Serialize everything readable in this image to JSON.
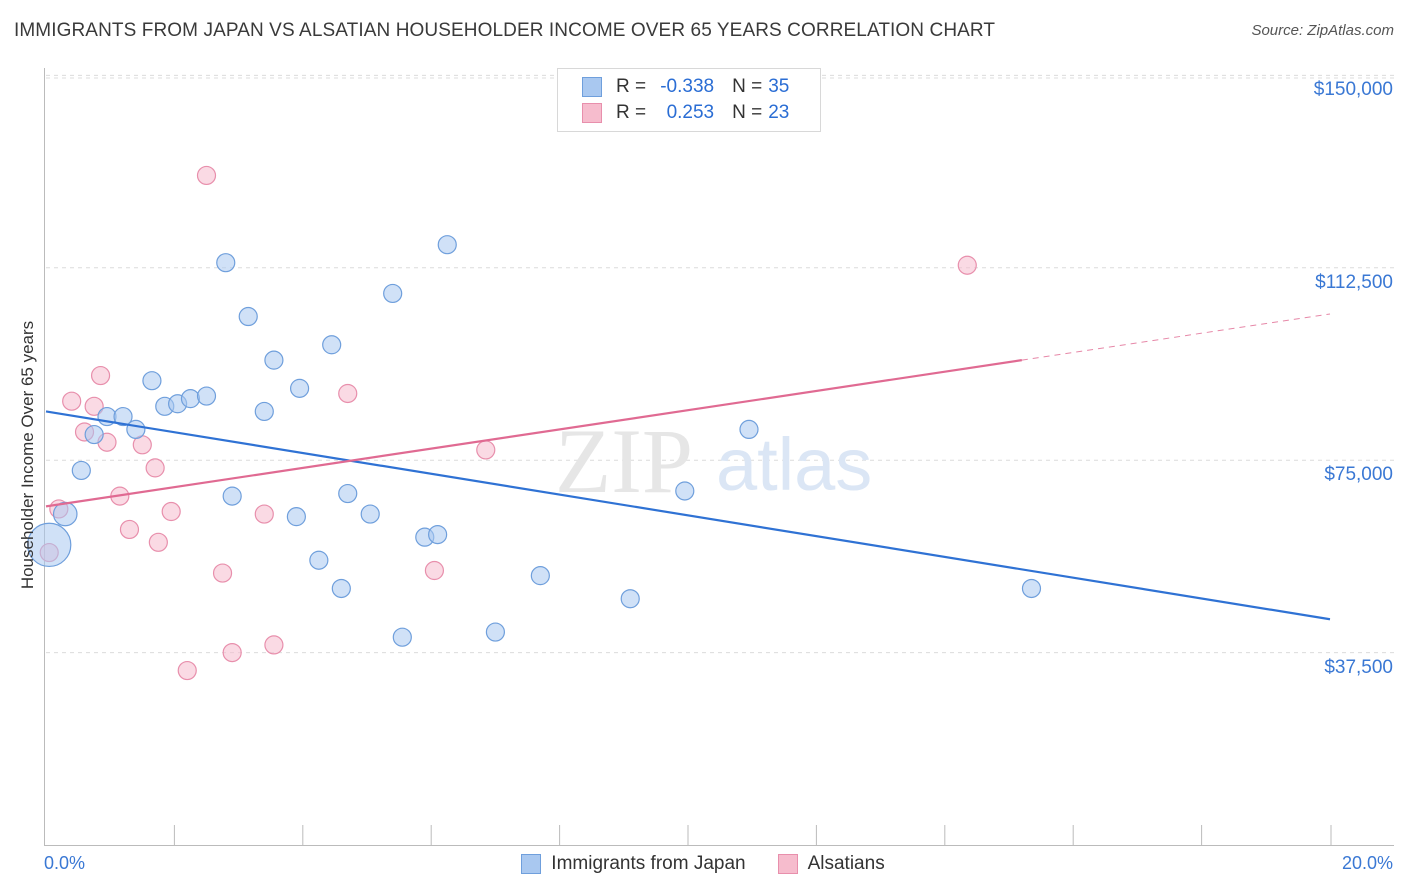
{
  "header": {
    "title": "IMMIGRANTS FROM JAPAN VS ALSATIAN HOUSEHOLDER INCOME OVER 65 YEARS CORRELATION CHART",
    "source": "Source: ZipAtlas.com"
  },
  "legend": {
    "r_label": "R =",
    "n_label": "N =",
    "rows": [
      {
        "r": "-0.338",
        "n": "35"
      },
      {
        "r": "0.253",
        "n": "23"
      }
    ]
  },
  "watermark": {
    "zip": "ZIP",
    "atlas": "atlas"
  },
  "chart_data": {
    "type": "scatter",
    "title": "IMMIGRANTS FROM JAPAN VS ALSATIAN HOUSEHOLDER INCOME OVER 65 YEARS CORRELATION CHART",
    "xlabel": "",
    "ylabel": "Householder Income Over 65 years",
    "xlim": [
      0,
      20
    ],
    "ylim": [
      0,
      153000
    ],
    "x_tick_labels": {
      "min": "0.0%",
      "max": "20.0%"
    },
    "y_ticks": [
      {
        "value": 37500,
        "label": "$37,500"
      },
      {
        "value": 75000,
        "label": "$75,000"
      },
      {
        "value": 112500,
        "label": "$112,500"
      },
      {
        "value": 150000,
        "label": "$150,000"
      }
    ],
    "colors": {
      "blue_fill": "#a9c8f0",
      "blue_stroke": "#6f9fdc",
      "blue_line": "#2f72d4",
      "pink_fill": "#f6bccd",
      "pink_stroke": "#e88fac",
      "pink_line": "#e06a92",
      "grid": "#dcdcdc",
      "tick_label": "#3a78d4"
    },
    "series": [
      {
        "name": "Immigrants from Japan",
        "r": -0.338,
        "n": 35,
        "trend": {
          "x": [
            0.0,
            20.0
          ],
          "y": [
            84500,
            44000
          ]
        },
        "points": [
          {
            "x": 0.05,
            "y": 58500,
            "size": 2.4
          },
          {
            "x": 0.3,
            "y": 64500,
            "size": 1.3
          },
          {
            "x": 0.55,
            "y": 73000,
            "size": 1
          },
          {
            "x": 0.75,
            "y": 80000,
            "size": 1
          },
          {
            "x": 0.95,
            "y": 83500,
            "size": 1
          },
          {
            "x": 1.2,
            "y": 83500,
            "size": 1
          },
          {
            "x": 1.4,
            "y": 81000,
            "size": 1
          },
          {
            "x": 1.65,
            "y": 90500,
            "size": 1
          },
          {
            "x": 1.85,
            "y": 85500,
            "size": 1
          },
          {
            "x": 2.05,
            "y": 86000,
            "size": 1
          },
          {
            "x": 2.25,
            "y": 87000,
            "size": 1
          },
          {
            "x": 2.5,
            "y": 87500,
            "size": 1
          },
          {
            "x": 2.8,
            "y": 113500,
            "size": 1
          },
          {
            "x": 2.9,
            "y": 68000,
            "size": 1
          },
          {
            "x": 3.15,
            "y": 103000,
            "size": 1
          },
          {
            "x": 3.4,
            "y": 84500,
            "size": 1
          },
          {
            "x": 3.55,
            "y": 94500,
            "size": 1
          },
          {
            "x": 3.9,
            "y": 64000,
            "size": 1
          },
          {
            "x": 3.95,
            "y": 89000,
            "size": 1
          },
          {
            "x": 4.25,
            "y": 55500,
            "size": 1
          },
          {
            "x": 4.45,
            "y": 97500,
            "size": 1
          },
          {
            "x": 4.6,
            "y": 50000,
            "size": 1
          },
          {
            "x": 4.7,
            "y": 68500,
            "size": 1
          },
          {
            "x": 5.05,
            "y": 64500,
            "size": 1
          },
          {
            "x": 5.4,
            "y": 107500,
            "size": 1
          },
          {
            "x": 5.55,
            "y": 40500,
            "size": 1
          },
          {
            "x": 5.9,
            "y": 60000,
            "size": 1
          },
          {
            "x": 6.1,
            "y": 60500,
            "size": 1
          },
          {
            "x": 6.25,
            "y": 117000,
            "size": 1
          },
          {
            "x": 7.0,
            "y": 41500,
            "size": 1
          },
          {
            "x": 7.7,
            "y": 52500,
            "size": 1
          },
          {
            "x": 9.1,
            "y": 48000,
            "size": 1
          },
          {
            "x": 9.95,
            "y": 69000,
            "size": 1
          },
          {
            "x": 10.95,
            "y": 81000,
            "size": 1
          },
          {
            "x": 15.35,
            "y": 50000,
            "size": 1
          }
        ]
      },
      {
        "name": "Alsatians",
        "r": 0.253,
        "n": 23,
        "trend": {
          "x": [
            0.0,
            15.2
          ],
          "y": [
            66000,
            94500
          ],
          "dashed_to": {
            "x": 20.0,
            "y": 103500
          }
        },
        "points": [
          {
            "x": 0.05,
            "y": 57000,
            "size": 1
          },
          {
            "x": 0.2,
            "y": 65500,
            "size": 1
          },
          {
            "x": 0.4,
            "y": 86500,
            "size": 1
          },
          {
            "x": 0.6,
            "y": 80500,
            "size": 1
          },
          {
            "x": 0.75,
            "y": 85500,
            "size": 1
          },
          {
            "x": 0.85,
            "y": 91500,
            "size": 1
          },
          {
            "x": 0.95,
            "y": 78500,
            "size": 1
          },
          {
            "x": 1.15,
            "y": 68000,
            "size": 1
          },
          {
            "x": 1.3,
            "y": 61500,
            "size": 1
          },
          {
            "x": 1.5,
            "y": 78000,
            "size": 1
          },
          {
            "x": 1.7,
            "y": 73500,
            "size": 1
          },
          {
            "x": 1.75,
            "y": 59000,
            "size": 1
          },
          {
            "x": 1.95,
            "y": 65000,
            "size": 1
          },
          {
            "x": 2.2,
            "y": 34000,
            "size": 1
          },
          {
            "x": 2.5,
            "y": 130500,
            "size": 1
          },
          {
            "x": 2.75,
            "y": 53000,
            "size": 1
          },
          {
            "x": 2.9,
            "y": 37500,
            "size": 1
          },
          {
            "x": 3.4,
            "y": 64500,
            "size": 1
          },
          {
            "x": 3.55,
            "y": 39000,
            "size": 1
          },
          {
            "x": 4.7,
            "y": 88000,
            "size": 1
          },
          {
            "x": 6.05,
            "y": 53500,
            "size": 1
          },
          {
            "x": 6.85,
            "y": 77000,
            "size": 1
          },
          {
            "x": 14.35,
            "y": 113000,
            "size": 1
          }
        ]
      }
    ]
  }
}
